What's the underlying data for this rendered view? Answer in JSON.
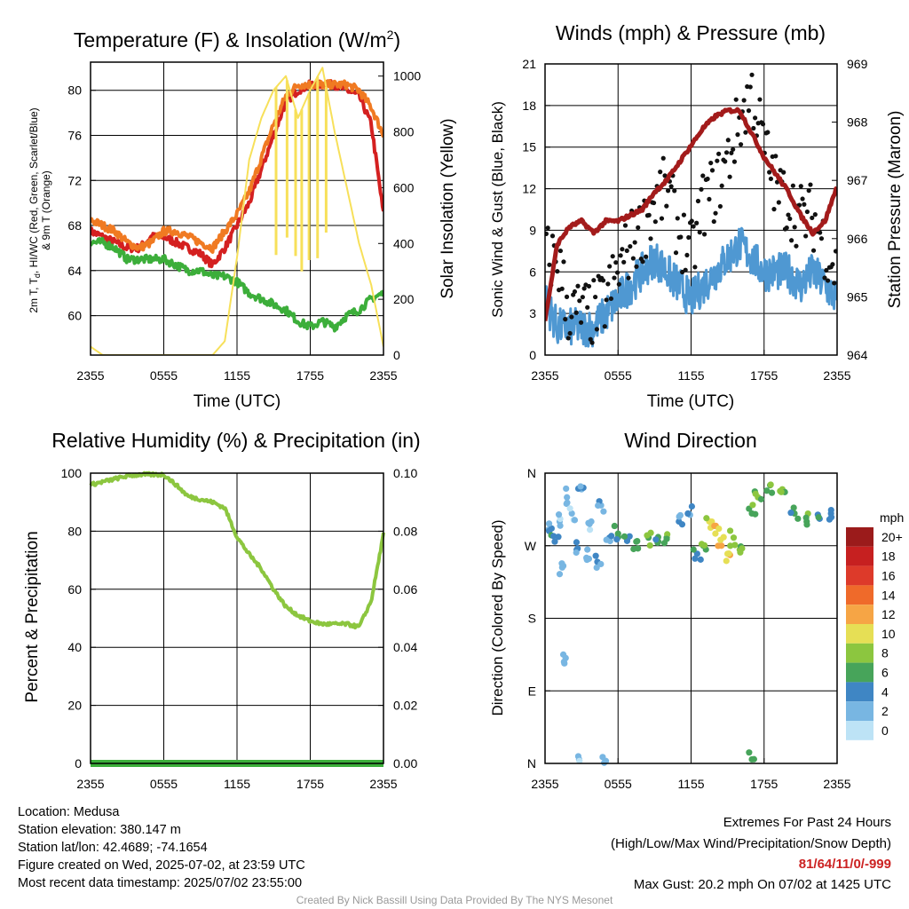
{
  "colors": {
    "temp": "#d42020",
    "dew": "#3cae3a",
    "hiwc": "#1f5fd0",
    "t9m": "#f07a22",
    "insol": "#f7e05a",
    "wind": "#4f98d2",
    "gust": "#111111",
    "pressure": "#a31b1b",
    "rh": "#8cc63f",
    "precip": "#3cae3a",
    "extremes": "#cc2222",
    "credit": "#999999"
  },
  "x_ticks": [
    "2355",
    "0555",
    "1155",
    "1755",
    "2355"
  ],
  "panels": {
    "temperature": {
      "title": "Temperature (F) & Insolation (W/m",
      "title_sup": "2",
      "title_end": ")",
      "ylabel_left_1": "2m T, T",
      "ylabel_left_sub": "d",
      "ylabel_left_2": ", HI/WC (Red, Green, Scarlet/Blue)",
      "ylabel_left_3": "& 9m T (Orange)",
      "ylabel_right": "Solar Insolation (Yellow)",
      "xlabel": "Time (UTC)"
    },
    "winds": {
      "title": "Winds (mph) & Pressure (mb)",
      "ylabel_left": "Sonic Wind & Gust (Blue, Black)",
      "ylabel_right": "Station Pressure (Maroon)",
      "xlabel": "Time (UTC)"
    },
    "humidity": {
      "title": "Relative Humidity (%) & Precipitation (in)",
      "ylabel_left": "Percent & Precipitation"
    },
    "direction": {
      "title": "Wind Direction",
      "ylabel_left": "Direction (Colored By Speed)"
    }
  },
  "legend": {
    "title": "mph",
    "labels": [
      "20+",
      "18",
      "16",
      "14",
      "12",
      "10",
      "8",
      "6",
      "4",
      "2",
      "0"
    ],
    "colors": [
      "#9b1b1b",
      "#c62020",
      "#dd3a2a",
      "#ef6a2a",
      "#f6a545",
      "#e6df55",
      "#8cc63f",
      "#47a45a",
      "#3f86c4",
      "#78b6e2",
      "#bde3f6"
    ]
  },
  "footer": {
    "location": "Location: Medusa",
    "elevation": "Station elevation: 380.147 m",
    "latlon": "Station lat/lon: 42.4689; -74.1654",
    "created": "Figure created on Wed, 2025-07-02, at 23:59 UTC",
    "recent": "Most recent data timestamp: 2025/07/02 23:55:00",
    "extremes_title": "Extremes For Past 24 Hours",
    "extremes_sub": "(High/Low/Max Wind/Precipitation/Snow Depth)",
    "extremes_values": "81/64/11/0/-999",
    "max_gust": "Max Gust: 20.2 mph On 07/02 at 1425 UTC",
    "credit": "Created By Nick Bassill Using Data Provided By The NYS Mesonet"
  },
  "chart_data": [
    {
      "type": "line",
      "title": "Temperature (F) & Insolation (W/m2)",
      "xlabel": "Time (UTC)",
      "ylabel": "2m T, Td, HI/WC (Red, Green, Scarlet/Blue) & 9m T (Orange)",
      "ylabel_right": "Solar Insolation (Yellow)",
      "x": [
        0,
        1,
        2,
        3,
        4,
        5,
        6,
        7,
        8,
        9,
        10,
        11,
        12,
        13,
        14,
        15,
        16,
        17,
        18,
        19,
        20,
        21,
        22,
        23,
        24
      ],
      "x_ticks": [
        "2355",
        "0555",
        "1155",
        "1755",
        "2355"
      ],
      "ylim": [
        56.5,
        82.5
      ],
      "ylim_right": [
        0,
        1050
      ],
      "yticks": [
        60,
        64,
        68,
        72,
        76,
        80
      ],
      "yticks_right": [
        0,
        200,
        400,
        600,
        800,
        1000
      ],
      "series": [
        {
          "name": "2m T",
          "color": "#d42020",
          "axis": "left",
          "values": [
            67.5,
            67,
            66.5,
            66,
            66,
            67,
            67,
            66.5,
            66,
            65.5,
            64.5,
            66,
            68,
            70,
            73,
            76,
            79,
            80,
            80.5,
            80.5,
            80.5,
            80,
            79.5,
            77,
            69
          ]
        },
        {
          "name": "9m T",
          "color": "#f07a22",
          "axis": "left",
          "values": [
            68.5,
            68,
            67.5,
            66.5,
            66,
            66.5,
            67.5,
            67.5,
            67,
            66.5,
            66,
            67.5,
            69,
            71,
            74,
            77,
            79.5,
            80.5,
            80.5,
            80.5,
            80.5,
            80.5,
            80,
            78.5,
            76
          ]
        },
        {
          "name": "Td",
          "color": "#3cae3a",
          "axis": "left",
          "values": [
            66.5,
            66.5,
            66,
            65,
            65,
            65,
            65,
            64.5,
            64,
            64,
            63.5,
            63.5,
            63,
            62,
            61.5,
            61,
            60.5,
            59.5,
            59,
            59.5,
            59,
            60,
            60.5,
            61.5,
            62
          ]
        },
        {
          "name": "Solar Insolation",
          "color": "#f7e05a",
          "axis": "right",
          "values": [
            30,
            0,
            0,
            0,
            0,
            0,
            0,
            0,
            0,
            0,
            0,
            50,
            350,
            700,
            850,
            950,
            1000,
            850,
            950,
            1030,
            800,
            600,
            400,
            250,
            30
          ]
        }
      ]
    },
    {
      "type": "line",
      "title": "Winds (mph) & Pressure (mb)",
      "xlabel": "Time (UTC)",
      "ylabel": "Sonic Wind & Gust (Blue, Black)",
      "ylabel_right": "Station Pressure (Maroon)",
      "x": [
        0,
        1,
        2,
        3,
        4,
        5,
        6,
        7,
        8,
        9,
        10,
        11,
        12,
        13,
        14,
        15,
        16,
        17,
        18,
        19,
        20,
        21,
        22,
        23,
        24
      ],
      "x_ticks": [
        "2355",
        "0555",
        "1155",
        "1755",
        "2355"
      ],
      "ylim": [
        0,
        21
      ],
      "ylim_right": [
        964,
        969
      ],
      "yticks": [
        0,
        3,
        6,
        9,
        12,
        15,
        18,
        21
      ],
      "yticks_right": [
        964,
        965,
        966,
        967,
        968,
        969
      ],
      "series": [
        {
          "name": "Sonic Wind",
          "color": "#4f98d2",
          "axis": "left",
          "values": [
            4,
            2,
            2,
            2,
            2,
            3,
            4,
            5,
            6,
            7,
            6,
            5,
            4,
            5,
            6,
            7,
            8,
            7,
            6,
            6,
            6,
            5,
            6,
            5,
            4
          ]
        },
        {
          "name": "Gust",
          "color": "#111111",
          "axis": "left",
          "style": "dots",
          "values": [
            7,
            7,
            3,
            3,
            3,
            4,
            6,
            8,
            9,
            11,
            12,
            9,
            7,
            11,
            12,
            14,
            17,
            19,
            15,
            12,
            11,
            10,
            10,
            8,
            6
          ]
        },
        {
          "name": "Station Pressure",
          "color": "#a31b1b",
          "axis": "right",
          "values": [
            964.6,
            965.9,
            966.2,
            966.3,
            966.1,
            966.3,
            966.3,
            966.4,
            966.5,
            966.8,
            967.0,
            967.3,
            967.6,
            967.9,
            968.1,
            968.2,
            968.2,
            967.8,
            967.4,
            967.1,
            966.8,
            966.4,
            966.1,
            966.3,
            966.9
          ]
        }
      ]
    },
    {
      "type": "line",
      "title": "Relative Humidity (%) & Precipitation (in)",
      "xlabel": "",
      "ylabel": "Percent & Precipitation",
      "x": [
        0,
        1,
        2,
        3,
        4,
        5,
        6,
        7,
        8,
        9,
        10,
        11,
        12,
        13,
        14,
        15,
        16,
        17,
        18,
        19,
        20,
        21,
        22,
        23,
        24
      ],
      "x_ticks": [
        "2355",
        "0555",
        "1155",
        "1755",
        "2355"
      ],
      "ylim": [
        0,
        100
      ],
      "ylim_right": [
        0,
        0.1
      ],
      "yticks": [
        0,
        20,
        40,
        60,
        80,
        100
      ],
      "yticks_right": [
        0,
        0.02,
        0.04,
        0.06,
        0.08,
        0.1
      ],
      "series": [
        {
          "name": "Relative Humidity",
          "color": "#8cc63f",
          "axis": "left",
          "values": [
            96,
            97,
            98,
            99,
            99.5,
            99.5,
            99.5,
            96,
            92,
            91,
            90,
            88,
            78,
            72,
            67,
            60,
            54,
            51,
            49,
            48,
            48,
            48,
            47,
            56,
            79
          ]
        },
        {
          "name": "Precipitation",
          "color": "#3cae3a",
          "axis": "right",
          "values": [
            0,
            0,
            0,
            0,
            0,
            0,
            0,
            0,
            0,
            0,
            0,
            0,
            0,
            0,
            0,
            0,
            0,
            0,
            0,
            0,
            0,
            0,
            0,
            0,
            0
          ]
        }
      ]
    },
    {
      "type": "scatter",
      "title": "Wind Direction",
      "xlabel": "",
      "ylabel": "Direction (Colored By Speed)",
      "x_ticks": [
        "2355",
        "0555",
        "1155",
        "1755",
        "2355"
      ],
      "ylim": [
        0,
        360
      ],
      "yticklabels": [
        "N",
        "E",
        "S",
        "W",
        "N"
      ],
      "yticks": [
        0,
        90,
        180,
        270,
        360
      ],
      "colorbar": {
        "label": "mph",
        "levels": [
          "0",
          "2",
          "4",
          "6",
          "8",
          "10",
          "12",
          "14",
          "16",
          "18",
          "20+"
        ]
      },
      "points": [
        {
          "x": 0.3,
          "dir": 290,
          "mph": 2
        },
        {
          "x": 0.8,
          "dir": 275,
          "mph": 4
        },
        {
          "x": 1.2,
          "dir": 300,
          "mph": 1
        },
        {
          "x": 1.5,
          "dir": 245,
          "mph": 1
        },
        {
          "x": 1.5,
          "dir": 135,
          "mph": 2
        },
        {
          "x": 1.8,
          "dir": 330,
          "mph": 2
        },
        {
          "x": 2.2,
          "dir": 310,
          "mph": 1
        },
        {
          "x": 2.6,
          "dir": 265,
          "mph": 3
        },
        {
          "x": 2.8,
          "dir": 5,
          "mph": 1
        },
        {
          "x": 3.0,
          "dir": 340,
          "mph": 2
        },
        {
          "x": 3.4,
          "dir": 255,
          "mph": 2
        },
        {
          "x": 3.8,
          "dir": 300,
          "mph": 1
        },
        {
          "x": 4.3,
          "dir": 250,
          "mph": 3
        },
        {
          "x": 4.6,
          "dir": 320,
          "mph": 2
        },
        {
          "x": 5.0,
          "dir": 3,
          "mph": 1
        },
        {
          "x": 5.3,
          "dir": 280,
          "mph": 3
        },
        {
          "x": 6.0,
          "dir": 285,
          "mph": 5
        },
        {
          "x": 6.8,
          "dir": 280,
          "mph": 5
        },
        {
          "x": 7.5,
          "dir": 275,
          "mph": 6
        },
        {
          "x": 8.5,
          "dir": 280,
          "mph": 6
        },
        {
          "x": 9.3,
          "dir": 275,
          "mph": 5
        },
        {
          "x": 10.0,
          "dir": 280,
          "mph": 6
        },
        {
          "x": 11.0,
          "dir": 300,
          "mph": 3
        },
        {
          "x": 11.8,
          "dir": 310,
          "mph": 2
        },
        {
          "x": 12.5,
          "dir": 260,
          "mph": 4
        },
        {
          "x": 13.0,
          "dir": 270,
          "mph": 6
        },
        {
          "x": 13.5,
          "dir": 300,
          "mph": 9
        },
        {
          "x": 14.0,
          "dir": 285,
          "mph": 10
        },
        {
          "x": 14.5,
          "dir": 270,
          "mph": 11
        },
        {
          "x": 15.0,
          "dir": 260,
          "mph": 10
        },
        {
          "x": 15.5,
          "dir": 280,
          "mph": 8
        },
        {
          "x": 16.0,
          "dir": 265,
          "mph": 7
        },
        {
          "x": 17.0,
          "dir": 5,
          "mph": 6
        },
        {
          "x": 17.0,
          "dir": 310,
          "mph": 6
        },
        {
          "x": 17.5,
          "dir": 330,
          "mph": 7
        },
        {
          "x": 18.5,
          "dir": 345,
          "mph": 6
        },
        {
          "x": 19.5,
          "dir": 340,
          "mph": 7
        },
        {
          "x": 20.5,
          "dir": 310,
          "mph": 5
        },
        {
          "x": 21.5,
          "dir": 300,
          "mph": 6
        },
        {
          "x": 22.5,
          "dir": 305,
          "mph": 4
        },
        {
          "x": 23.5,
          "dir": 310,
          "mph": 3
        }
      ]
    }
  ]
}
